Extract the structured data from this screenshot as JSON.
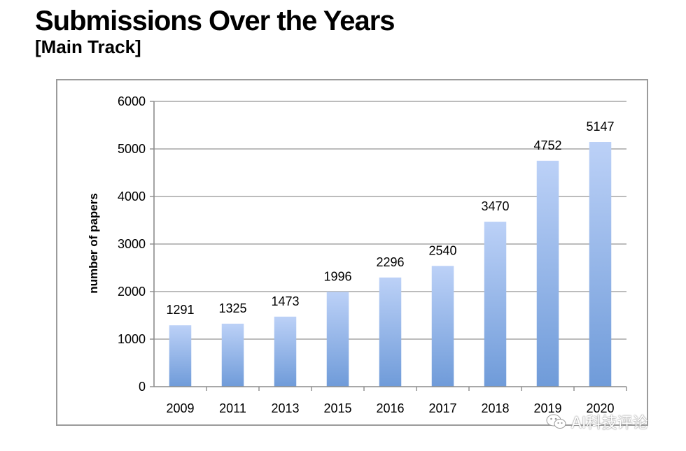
{
  "title": "Submissions Over the Years",
  "subtitle": "[Main Track]",
  "watermark_text": "AI科技评论",
  "colors": {
    "bar_top": "#bcd1f7",
    "bar_bottom": "#6f9bd9",
    "grid": "#a6a6a6",
    "axis": "#8c8c8c",
    "frame": "#9b9b9b"
  },
  "chart_data": {
    "type": "bar",
    "categories": [
      "2009",
      "2011",
      "2013",
      "2015",
      "2016",
      "2017",
      "2018",
      "2019",
      "2020"
    ],
    "values": [
      1291,
      1325,
      1473,
      1996,
      2296,
      2540,
      3470,
      4752,
      5147
    ],
    "data_labels": [
      "1291",
      "1325",
      "1473",
      "1996",
      "2296",
      "2540",
      "3470",
      "4752",
      "5147"
    ],
    "title": "",
    "xlabel": "",
    "ylabel": "number of papers",
    "ylim": [
      0,
      6000
    ],
    "yticks": [
      0,
      1000,
      2000,
      3000,
      4000,
      5000,
      6000
    ],
    "ytick_labels": [
      "0",
      "1000",
      "2000",
      "3000",
      "4000",
      "5000",
      "6000"
    ],
    "grid": true,
    "legend": "none"
  }
}
